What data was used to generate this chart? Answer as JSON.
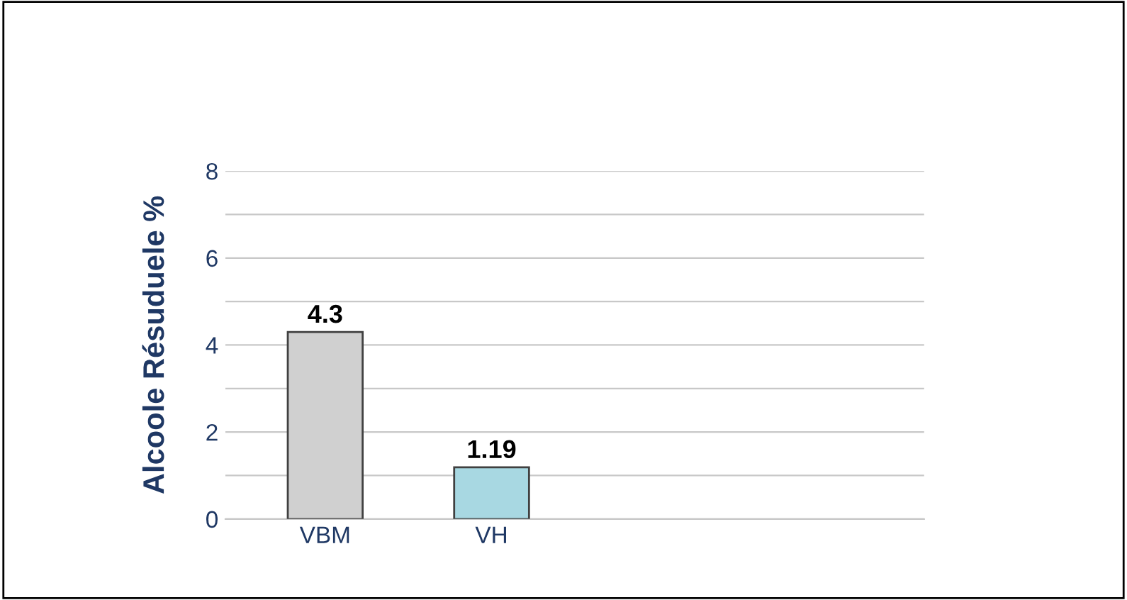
{
  "chart_data": {
    "type": "bar",
    "ylabel": "Alcoole Résuduele %",
    "categories": [
      "VBM",
      "VH"
    ],
    "values": [
      4.3,
      1.19
    ],
    "colors": [
      "#d0d0d0",
      "#a8d8e2"
    ],
    "data_labels": true,
    "ylim": [
      0,
      8
    ],
    "yticks": [
      0,
      {
        "value": 1,
        "label": null
      },
      2,
      {
        "value": 3,
        "label": null
      },
      4,
      {
        "value": 5,
        "label": null
      },
      6,
      {
        "value": 7,
        "label": null
      },
      8
    ],
    "grid": "y"
  }
}
